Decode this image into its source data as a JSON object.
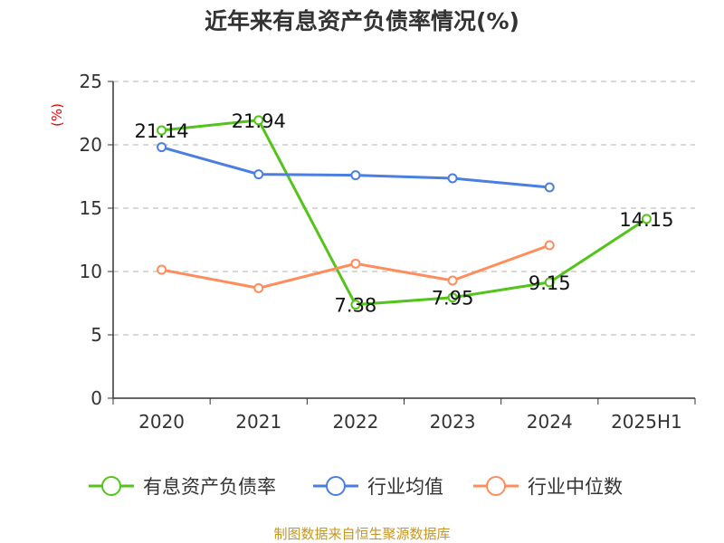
{
  "chart_data": {
    "type": "line",
    "title": "近年来有息资产负债率情况(%)",
    "ylabel": "(%)",
    "ylim": [
      0,
      25
    ],
    "yticks": [
      0,
      5,
      10,
      15,
      20,
      25
    ],
    "grid": true,
    "legend_position": "bottom",
    "categories": [
      "2020",
      "2021",
      "2022",
      "2023",
      "2024",
      "2025H1"
    ],
    "series": [
      {
        "name": "有息资产负债率",
        "color": "#52c41a",
        "values": [
          21.14,
          21.94,
          7.38,
          7.95,
          9.15,
          14.15
        ],
        "labels": [
          "21.14",
          "21.94",
          "7.38",
          "7.95",
          "9.15",
          "14.15"
        ]
      },
      {
        "name": "行业均值",
        "color": "#4a7ee0",
        "values": [
          19.81,
          17.67,
          17.6,
          17.36,
          16.64,
          null
        ]
      },
      {
        "name": "行业中位数",
        "color": "#ff8c5a",
        "values": [
          10.14,
          8.69,
          10.62,
          9.29,
          12.07,
          null
        ]
      }
    ],
    "source": "制图数据来自恒生聚源数据库"
  }
}
